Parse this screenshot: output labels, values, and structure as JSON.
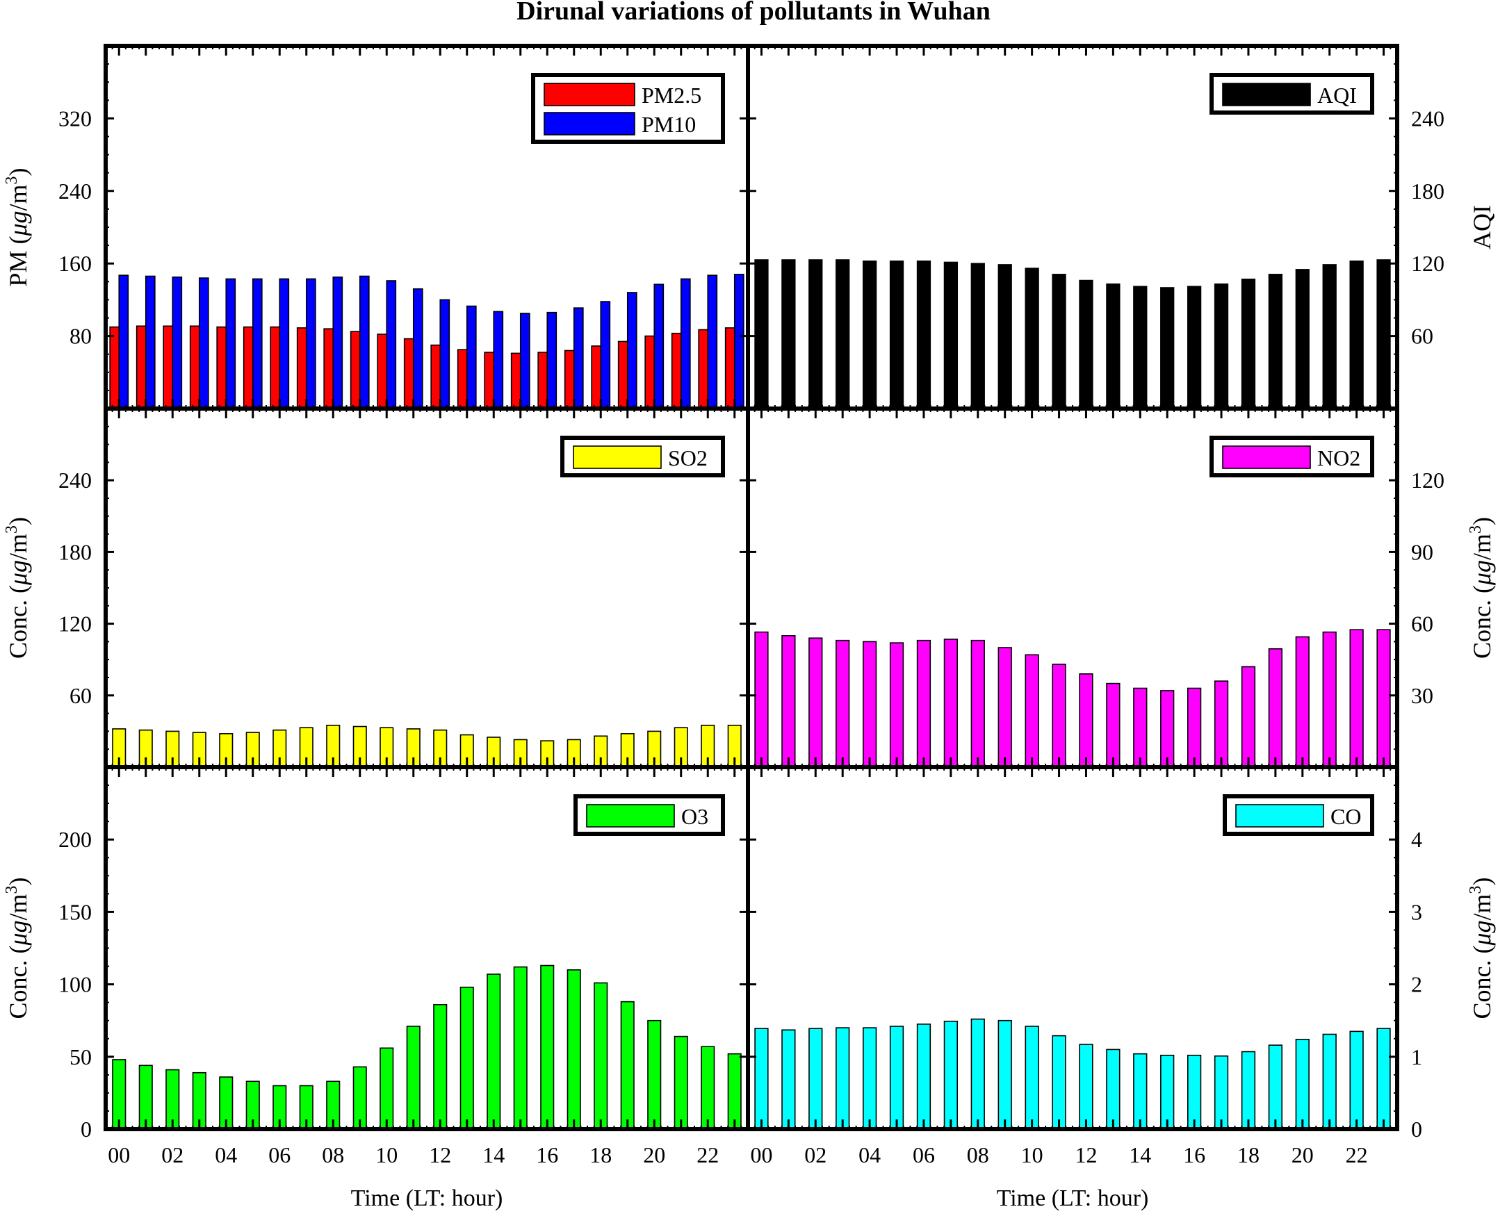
{
  "title": "Dirunal variations of pollutants in Wuhan",
  "x_tick_labels": [
    "00",
    "02",
    "04",
    "06",
    "08",
    "10",
    "12",
    "14",
    "16",
    "18",
    "20",
    "22"
  ],
  "chart_data": [
    {
      "id": "pm",
      "type": "bar",
      "side": "left",
      "ylabel": "PM (μg/m³)",
      "ylabel_parts": {
        "pre": "PM (",
        "unit": "μg",
        "mid": "/m",
        "sup": "3",
        "post": ")"
      },
      "ylim": [
        0,
        400
      ],
      "yticks": [
        80,
        160,
        240,
        320
      ],
      "xlabel": "",
      "legend_position": "top-right",
      "categories": [
        0,
        1,
        2,
        3,
        4,
        5,
        6,
        7,
        8,
        9,
        10,
        11,
        12,
        13,
        14,
        15,
        16,
        17,
        18,
        19,
        20,
        21,
        22,
        23
      ],
      "series": [
        {
          "name": "PM2.5",
          "color": "#ff0000",
          "values": [
            90,
            91,
            91,
            91,
            90,
            90,
            90,
            89,
            88,
            85,
            82,
            77,
            70,
            65,
            62,
            61,
            62,
            64,
            69,
            74,
            80,
            83,
            87,
            89
          ]
        },
        {
          "name": "PM10",
          "color": "#0000ff",
          "values": [
            147,
            146,
            145,
            144,
            143,
            143,
            143,
            143,
            145,
            146,
            141,
            132,
            120,
            113,
            107,
            105,
            106,
            111,
            118,
            128,
            137,
            143,
            147,
            148
          ]
        }
      ]
    },
    {
      "id": "aqi",
      "type": "bar",
      "side": "right",
      "ylabel": "AQI",
      "ylim": [
        0,
        300
      ],
      "yticks": [
        60,
        120,
        180,
        240
      ],
      "xlabel": "",
      "legend_position": "top-right",
      "categories": [
        0,
        1,
        2,
        3,
        4,
        5,
        6,
        7,
        8,
        9,
        10,
        11,
        12,
        13,
        14,
        15,
        16,
        17,
        18,
        19,
        20,
        21,
        22,
        23
      ],
      "series": [
        {
          "name": "AQI",
          "color": "#000000",
          "values": [
            123,
            123,
            123,
            123,
            122,
            122,
            122,
            121,
            120,
            119,
            116,
            111,
            106,
            103,
            101,
            100,
            101,
            103,
            107,
            111,
            115,
            119,
            122,
            123
          ]
        }
      ]
    },
    {
      "id": "so2",
      "type": "bar",
      "side": "left",
      "ylabel": "Conc. (μg/m³)",
      "ylabel_parts": {
        "pre": "Conc. (",
        "unit": "μg",
        "mid": "/m",
        "sup": "3",
        "post": ")"
      },
      "ylim": [
        0,
        300
      ],
      "yticks": [
        60,
        120,
        180,
        240
      ],
      "xlabel": "",
      "legend_position": "top-right",
      "categories": [
        0,
        1,
        2,
        3,
        4,
        5,
        6,
        7,
        8,
        9,
        10,
        11,
        12,
        13,
        14,
        15,
        16,
        17,
        18,
        19,
        20,
        21,
        22,
        23
      ],
      "series": [
        {
          "name": "SO2",
          "color": "#ffff00",
          "values": [
            32,
            31,
            30,
            29,
            28,
            29,
            31,
            33,
            35,
            34,
            33,
            32,
            31,
            27,
            25,
            23,
            22,
            23,
            26,
            28,
            30,
            33,
            35,
            35
          ]
        }
      ]
    },
    {
      "id": "no2",
      "type": "bar",
      "side": "right",
      "ylabel": "Conc. (μg/m³)",
      "ylabel_parts": {
        "pre": "Conc. (",
        "unit": "μg",
        "mid": "/m",
        "sup": "3",
        "post": ")"
      },
      "ylim": [
        0,
        150
      ],
      "yticks": [
        30,
        60,
        90,
        120
      ],
      "xlabel": "",
      "legend_position": "top-right",
      "categories": [
        0,
        1,
        2,
        3,
        4,
        5,
        6,
        7,
        8,
        9,
        10,
        11,
        12,
        13,
        14,
        15,
        16,
        17,
        18,
        19,
        20,
        21,
        22,
        23
      ],
      "series": [
        {
          "name": "NO2",
          "color": "#ff00ff",
          "values": [
            56.5,
            55,
            54,
            53,
            52.5,
            52,
            53,
            53.5,
            53,
            50,
            47,
            43,
            39,
            35,
            33,
            32,
            33,
            36,
            42,
            49.5,
            54.5,
            56.5,
            57.5,
            57.5
          ]
        }
      ]
    },
    {
      "id": "o3",
      "type": "bar",
      "side": "left",
      "ylabel": "Conc. (μg/m³)",
      "ylabel_parts": {
        "pre": "Conc. (",
        "unit": "μg",
        "mid": "/m",
        "sup": "3",
        "post": ")"
      },
      "ylim": [
        0,
        250
      ],
      "yticks": [
        0,
        50,
        100,
        150,
        200
      ],
      "xlabel": "Time (LT: hour)",
      "legend_position": "top-right",
      "categories": [
        0,
        1,
        2,
        3,
        4,
        5,
        6,
        7,
        8,
        9,
        10,
        11,
        12,
        13,
        14,
        15,
        16,
        17,
        18,
        19,
        20,
        21,
        22,
        23
      ],
      "series": [
        {
          "name": "O3",
          "color": "#00ff00",
          "values": [
            48,
            44,
            41,
            39,
            36,
            33,
            30,
            30,
            33,
            43,
            56,
            71,
            86,
            98,
            107,
            112,
            113,
            110,
            101,
            88,
            75,
            64,
            57,
            52
          ]
        }
      ]
    },
    {
      "id": "co",
      "type": "bar",
      "side": "right",
      "ylabel": "Conc. (μg/m³)",
      "ylabel_parts": {
        "pre": "Conc. (",
        "unit": "μg",
        "mid": "/m",
        "sup": "3",
        "post": ")"
      },
      "ylim": [
        0,
        5
      ],
      "yticks": [
        0,
        1,
        2,
        3,
        4
      ],
      "xlabel": "Time (LT: hour)",
      "legend_position": "top-right",
      "categories": [
        0,
        1,
        2,
        3,
        4,
        5,
        6,
        7,
        8,
        9,
        10,
        11,
        12,
        13,
        14,
        15,
        16,
        17,
        18,
        19,
        20,
        21,
        22,
        23
      ],
      "series": [
        {
          "name": "CO",
          "color": "#00ffff",
          "values": [
            1.39,
            1.37,
            1.39,
            1.4,
            1.4,
            1.42,
            1.45,
            1.49,
            1.52,
            1.5,
            1.42,
            1.29,
            1.17,
            1.1,
            1.04,
            1.02,
            1.02,
            1.01,
            1.07,
            1.16,
            1.24,
            1.31,
            1.35,
            1.39
          ]
        }
      ]
    }
  ]
}
